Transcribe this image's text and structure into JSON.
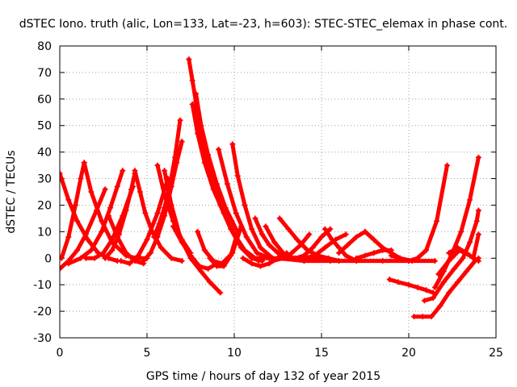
{
  "chart_data": {
    "type": "scatter",
    "title": "dSTEC Iono. truth (alic, Lon=133, Lat=-23, h=603): STEC-STEC_elemax in phase cont.",
    "xlabel": "GPS time / hours of day 132 of year 2015",
    "ylabel": "dSTEC  / TECUs",
    "xlim": [
      0,
      25
    ],
    "ylim": [
      -30,
      80
    ],
    "xticks": [
      0,
      5,
      10,
      15,
      20,
      25
    ],
    "yticks": [
      -30,
      -20,
      -10,
      0,
      10,
      20,
      30,
      40,
      50,
      60,
      70,
      80
    ],
    "grid": true,
    "legend": "none",
    "marker": "plus",
    "color": "#ff0000",
    "series": [
      {
        "x": [
          0.0,
          0.5,
          1.0,
          1.6,
          2.2,
          2.8,
          3.3
        ],
        "y": [
          32,
          22,
          14,
          7,
          2,
          0,
          -1
        ]
      },
      {
        "x": [
          0.0,
          0.5,
          1.0,
          1.5,
          2.1,
          2.6
        ],
        "y": [
          -4,
          -1,
          3,
          9,
          18,
          26
        ]
      },
      {
        "x": [
          0.1,
          0.5,
          0.9,
          1.2,
          1.4
        ],
        "y": [
          0,
          8,
          20,
          30,
          36
        ]
      },
      {
        "x": [
          1.4,
          1.8,
          2.4,
          3.0,
          3.8,
          4.4,
          5.0
        ],
        "y": [
          36,
          25,
          14,
          6,
          1,
          0,
          0
        ]
      },
      {
        "x": [
          0.5,
          1.2,
          1.8,
          2.4,
          2.9,
          3.3,
          3.6
        ],
        "y": [
          -2,
          0,
          3,
          10,
          19,
          27,
          33
        ]
      },
      {
        "x": [
          1.5,
          2.0,
          2.5,
          3.0,
          3.6,
          4.2
        ],
        "y": [
          0,
          0,
          2,
          7,
          16,
          27
        ]
      },
      {
        "x": [
          2.8,
          3.3,
          3.8,
          4.3,
          4.8
        ],
        "y": [
          16,
          8,
          2,
          -1,
          -2
        ]
      },
      {
        "x": [
          2.6,
          3.0,
          3.4,
          3.8,
          4.1,
          4.3
        ],
        "y": [
          0,
          3,
          9,
          18,
          26,
          32
        ]
      },
      {
        "x": [
          3.5,
          4.0,
          4.5,
          5.0,
          5.6,
          6.2
        ],
        "y": [
          -1,
          -2,
          1,
          7,
          17,
          30
        ]
      },
      {
        "x": [
          4.3,
          4.6,
          4.9,
          5.3,
          5.8,
          6.4,
          7.0
        ],
        "y": [
          33,
          25,
          17,
          10,
          4,
          0,
          -1
        ]
      },
      {
        "x": [
          5.6,
          6.0,
          6.5,
          7.0,
          7.5
        ],
        "y": [
          35,
          24,
          14,
          7,
          2
        ]
      },
      {
        "x": [
          5.4,
          5.7,
          6.0,
          6.3,
          6.6,
          6.9
        ],
        "y": [
          8,
          13,
          19,
          27,
          38,
          52
        ]
      },
      {
        "x": [
          6.0,
          6.4,
          6.9,
          7.5,
          8.1,
          8.6,
          9.2
        ],
        "y": [
          33,
          20,
          8,
          0,
          -5,
          -9,
          -13
        ]
      },
      {
        "x": [
          4.8,
          5.2,
          5.6,
          6.0,
          6.4,
          6.7,
          7.0
        ],
        "y": [
          -1,
          2,
          8,
          16,
          27,
          36,
          44
        ]
      },
      {
        "x": [
          6.5,
          7.0,
          7.5,
          8.0,
          8.5,
          9.0
        ],
        "y": [
          12,
          6,
          1,
          -3,
          -4,
          -2
        ]
      },
      {
        "x": [
          7.4,
          7.6,
          7.8,
          8.0,
          8.3,
          8.7,
          9.2,
          9.8,
          10.4,
          11.0,
          11.6
        ],
        "y": [
          75,
          67,
          59,
          50,
          40,
          30,
          20,
          11,
          4,
          0,
          -1
        ]
      },
      {
        "x": [
          7.6,
          7.9,
          8.3,
          8.8,
          9.4,
          10.0,
          10.6,
          11.4
        ],
        "y": [
          58,
          47,
          36,
          26,
          17,
          9,
          3,
          -1
        ]
      },
      {
        "x": [
          7.8,
          8.1,
          8.5,
          9.0,
          9.5,
          10.1
        ],
        "y": [
          62,
          50,
          39,
          28,
          19,
          11
        ]
      },
      {
        "x": [
          8.6,
          9.0,
          9.4,
          9.8,
          10.2
        ],
        "y": [
          0,
          -3,
          -3,
          1,
          10
        ]
      },
      {
        "x": [
          7.9,
          8.3,
          8.8,
          9.3,
          9.9,
          10.4
        ],
        "y": [
          10,
          3,
          -1,
          -2,
          2,
          12
        ]
      },
      {
        "x": [
          9.1,
          9.6,
          10.1,
          10.7,
          11.3,
          12.0
        ],
        "y": [
          41,
          28,
          17,
          8,
          2,
          0
        ]
      },
      {
        "x": [
          9.9,
          10.2,
          10.6,
          11.0,
          11.5,
          12.2
        ],
        "y": [
          43,
          31,
          20,
          11,
          4,
          0
        ]
      },
      {
        "x": [
          10.5,
          11.0,
          11.5,
          12.0,
          12.5,
          13.0
        ],
        "y": [
          0,
          -2,
          -3,
          -2,
          0,
          2
        ]
      },
      {
        "x": [
          11.2,
          11.6,
          12.0,
          12.5,
          13.2,
          14.0,
          15.0
        ],
        "y": [
          15,
          9,
          5,
          2,
          0,
          0,
          0
        ]
      },
      {
        "x": [
          11.8,
          12.3,
          12.8,
          13.4,
          14.0
        ],
        "y": [
          12,
          6,
          2,
          0,
          -1
        ]
      },
      {
        "x": [
          12.6,
          13.1,
          13.6,
          14.2,
          14.8,
          15.4,
          16.0
        ],
        "y": [
          15,
          11,
          7,
          3,
          1,
          0,
          -1
        ]
      },
      {
        "x": [
          12.2,
          12.8,
          13.3,
          13.8,
          14.3
        ],
        "y": [
          -1,
          0,
          2,
          5,
          9
        ]
      },
      {
        "x": [
          13.5,
          14.0,
          14.5,
          15.0,
          15.5
        ],
        "y": [
          0,
          1,
          4,
          8,
          11
        ]
      },
      {
        "x": [
          14.0,
          14.6,
          15.2,
          15.8,
          16.4
        ],
        "y": [
          0,
          1,
          4,
          7,
          9
        ]
      },
      {
        "x": [
          15.2,
          15.6,
          16.0,
          16.4,
          17.0
        ],
        "y": [
          11,
          7,
          4,
          1,
          -1
        ]
      },
      {
        "x": [
          16.0,
          16.5,
          17.0,
          17.5,
          18.0
        ],
        "y": [
          2,
          5,
          8,
          10,
          7
        ]
      },
      {
        "x": [
          17.5,
          18.0,
          18.5,
          19.0,
          19.5,
          20.2
        ],
        "y": [
          10,
          7,
          4,
          2,
          0,
          -1
        ]
      },
      {
        "x": [
          17.0,
          17.5,
          18.0,
          18.5,
          19.0
        ],
        "y": [
          0,
          1,
          2,
          3,
          3
        ]
      },
      {
        "x": [
          11.0,
          12.5,
          14.0,
          15.5,
          17.0,
          18.5,
          20.0,
          21.5
        ],
        "y": [
          0,
          0,
          -1,
          -1,
          -1,
          -1,
          -1,
          -1
        ]
      },
      {
        "x": [
          19.0,
          19.5,
          20.0,
          20.5,
          21.0,
          21.6,
          22.2
        ],
        "y": [
          1,
          0,
          -1,
          0,
          3,
          14,
          35
        ]
      },
      {
        "x": [
          18.9,
          19.4,
          20.0,
          20.5,
          21.0,
          21.4
        ],
        "y": [
          -8,
          -9,
          -10,
          -11,
          -12,
          -13
        ]
      },
      {
        "x": [
          20.3,
          20.8,
          21.3,
          21.8,
          22.3,
          22.8,
          23.3,
          23.8,
          24.0
        ],
        "y": [
          -22,
          -22,
          -22,
          -18,
          -13,
          -9,
          -5,
          -1,
          0
        ]
      },
      {
        "x": [
          20.9,
          21.4,
          22.0,
          22.6,
          23.1,
          23.5,
          23.9,
          24.0
        ],
        "y": [
          -16,
          -15,
          -9,
          -4,
          0,
          6,
          14,
          18
        ]
      },
      {
        "x": [
          21.5,
          22.0,
          22.5,
          23.0,
          23.5,
          24.0
        ],
        "y": [
          -11,
          -5,
          2,
          10,
          22,
          38
        ]
      },
      {
        "x": [
          21.7,
          22.3,
          22.9,
          23.5,
          24.0
        ],
        "y": [
          -6,
          -1,
          3,
          1,
          -1
        ]
      },
      {
        "x": [
          22.3,
          22.8,
          23.3,
          23.7,
          24.0
        ],
        "y": [
          2,
          4,
          2,
          0,
          9
        ]
      }
    ]
  }
}
